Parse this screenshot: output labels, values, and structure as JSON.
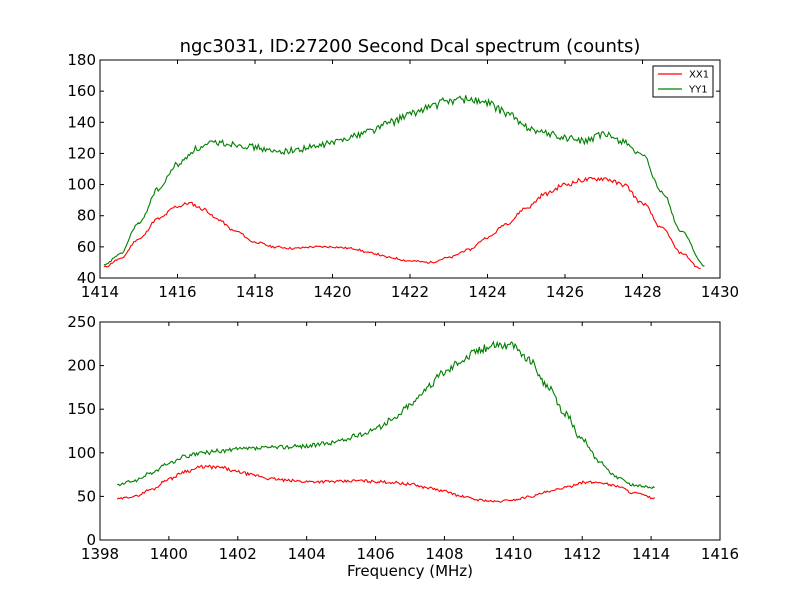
{
  "chart_data": [
    {
      "type": "line",
      "title": "ngc3031, ID:27200 Second Dcal spectrum (counts)",
      "xlabel": "",
      "ylabel": "",
      "xlim": [
        1414,
        1430
      ],
      "ylim": [
        40,
        180
      ],
      "xticks": [
        1414,
        1416,
        1418,
        1420,
        1422,
        1424,
        1426,
        1428,
        1430
      ],
      "yticks": [
        40,
        60,
        80,
        100,
        120,
        140,
        160,
        180
      ],
      "grid": false,
      "legend": "top-right",
      "series": [
        {
          "name": "XX1",
          "color": "#ff0000",
          "x": [
            1414.1,
            1414.5,
            1415.0,
            1415.5,
            1416.0,
            1416.3,
            1416.7,
            1417.0,
            1417.5,
            1418.0,
            1418.5,
            1419.0,
            1419.5,
            1420.0,
            1420.5,
            1421.0,
            1421.5,
            1422.0,
            1422.5,
            1423.0,
            1423.5,
            1424.0,
            1424.5,
            1425.0,
            1425.5,
            1426.0,
            1426.5,
            1427.0,
            1427.5,
            1428.0,
            1428.5,
            1429.0,
            1429.5
          ],
          "y": [
            47,
            52,
            65,
            78,
            86,
            88,
            84,
            78,
            70,
            63,
            60,
            59,
            60,
            60,
            59,
            56,
            53,
            51,
            50,
            53,
            58,
            66,
            75,
            85,
            94,
            100,
            103,
            104,
            100,
            88,
            72,
            56,
            46
          ]
        },
        {
          "name": "YY1",
          "color": "#008000",
          "x": [
            1414.1,
            1414.5,
            1415.0,
            1415.5,
            1416.0,
            1416.5,
            1417.0,
            1417.5,
            1418.0,
            1418.5,
            1419.0,
            1419.5,
            1420.0,
            1420.5,
            1421.0,
            1421.5,
            1422.0,
            1422.5,
            1423.0,
            1423.5,
            1424.0,
            1424.5,
            1425.0,
            1425.5,
            1426.0,
            1426.5,
            1427.0,
            1427.5,
            1428.0,
            1428.5,
            1429.0,
            1429.6
          ],
          "y": [
            48,
            55,
            75,
            97,
            113,
            123,
            127,
            126,
            124,
            121,
            122,
            124,
            127,
            131,
            135,
            140,
            145,
            150,
            154,
            155,
            152,
            146,
            137,
            133,
            130,
            128,
            132,
            128,
            118,
            95,
            70,
            48
          ]
        }
      ]
    },
    {
      "type": "line",
      "title": "",
      "xlabel": "Frequency (MHz)",
      "ylabel": "",
      "xlim": [
        1398,
        1416
      ],
      "ylim": [
        0,
        250
      ],
      "xticks": [
        1398,
        1400,
        1402,
        1404,
        1406,
        1408,
        1410,
        1412,
        1414,
        1416
      ],
      "yticks": [
        0,
        50,
        100,
        150,
        200,
        250
      ],
      "grid": false,
      "series": [
        {
          "color": "#ff0000",
          "x": [
            1398.5,
            1399.0,
            1399.5,
            1400.0,
            1400.5,
            1401.0,
            1401.5,
            1402.0,
            1402.5,
            1403.0,
            1403.5,
            1404.0,
            1404.5,
            1405.0,
            1405.5,
            1406.0,
            1406.5,
            1407.0,
            1407.5,
            1408.0,
            1408.5,
            1409.0,
            1409.5,
            1410.0,
            1410.5,
            1411.0,
            1411.5,
            1412.0,
            1412.5,
            1413.0,
            1413.5,
            1414.1
          ],
          "y": [
            47,
            50,
            58,
            70,
            79,
            84,
            83,
            78,
            74,
            70,
            68,
            67,
            67,
            67,
            68,
            67,
            66,
            64,
            60,
            56,
            50,
            46,
            44,
            46,
            50,
            55,
            60,
            66,
            66,
            62,
            54,
            48
          ]
        },
        {
          "color": "#008000",
          "x": [
            1398.5,
            1399.0,
            1399.5,
            1400.0,
            1400.5,
            1401.0,
            1401.5,
            1402.0,
            1402.5,
            1403.0,
            1403.5,
            1404.0,
            1404.5,
            1405.0,
            1405.5,
            1406.0,
            1406.5,
            1407.0,
            1407.5,
            1408.0,
            1408.5,
            1409.0,
            1409.5,
            1410.0,
            1410.5,
            1411.0,
            1411.5,
            1412.0,
            1412.5,
            1413.0,
            1413.5,
            1414.1
          ],
          "y": [
            63,
            68,
            77,
            88,
            96,
            100,
            102,
            104,
            105,
            106,
            107,
            108,
            110,
            114,
            120,
            128,
            138,
            155,
            175,
            193,
            207,
            218,
            225,
            222,
            205,
            175,
            145,
            115,
            90,
            72,
            63,
            60
          ]
        }
      ]
    }
  ]
}
